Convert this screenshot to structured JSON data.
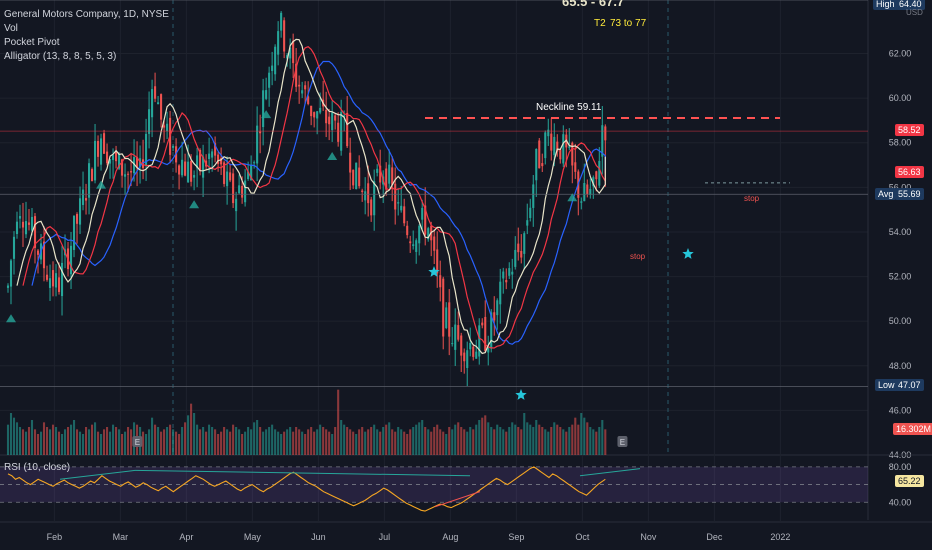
{
  "legend": {
    "title": "General Motors Company, 1D, NYSE",
    "vol": "Vol",
    "pocket_pivot": "Pocket Pivot",
    "alligator": "Alligator (13, 8, 8, 5, 5, 3)"
  },
  "header": {
    "price_fragment": "65.5 - 67.7",
    "t2_label": "T2",
    "t2_range": "73 to 77"
  },
  "annotations": {
    "neckline": "Neckline 59.11",
    "stop_upper": "stop",
    "stop_lower": "stop"
  },
  "price_tags": {
    "high_label": "High",
    "high_value": "64.40",
    "currency": "USD",
    "last": "58.52",
    "alligator": "56.63",
    "avg_label": "Avg",
    "avg_value": "55.69",
    "low_label": "Low",
    "low_value": "47.07",
    "volume": "16.302M",
    "rsi": "65.22"
  },
  "rsi": {
    "label": "RSI (10, close)",
    "levels": [
      "80.00",
      "40.00"
    ]
  },
  "colors": {
    "background": "#131722",
    "up": "#26a69a",
    "down": "#ef5350",
    "jaw": "#2962ff",
    "teeth": "#f23645",
    "lips": "#e8e4c9",
    "neckline": "#ff5252",
    "rsi_line": "#f5a623",
    "rsi_band": "#7e57c2"
  },
  "chart_data": {
    "type": "candlestick",
    "y_axis": {
      "ticks": [
        "62.00",
        "60.00",
        "58.00",
        "56.00",
        "54.00",
        "52.00",
        "50.00",
        "48.00",
        "46.00",
        "44.00"
      ],
      "ylim": [
        44,
        64.4
      ]
    },
    "x_axis": {
      "ticks": [
        "Feb",
        "Mar",
        "Apr",
        "May",
        "Jun",
        "Jul",
        "Aug",
        "Sep",
        "Oct",
        "Nov",
        "Dec",
        "2022"
      ]
    },
    "neckline_value": 59.11,
    "anchor_prices": [
      {
        "m": 0.0,
        "p": 51.5
      },
      {
        "m": 0.15,
        "p": 55.5
      },
      {
        "m": 0.35,
        "p": 54.0
      },
      {
        "m": 0.55,
        "p": 52.5
      },
      {
        "m": 0.75,
        "p": 51.5
      },
      {
        "m": 0.9,
        "p": 53.0
      },
      {
        "m": 1.1,
        "p": 55.0
      },
      {
        "m": 1.4,
        "p": 58.5
      },
      {
        "m": 1.6,
        "p": 57.0
      },
      {
        "m": 2.0,
        "p": 56.5
      },
      {
        "m": 2.2,
        "p": 61.0
      },
      {
        "m": 2.35,
        "p": 58.5
      },
      {
        "m": 2.55,
        "p": 57.5
      },
      {
        "m": 2.8,
        "p": 56.5
      },
      {
        "m": 3.1,
        "p": 57.5
      },
      {
        "m": 3.4,
        "p": 55.5
      },
      {
        "m": 3.65,
        "p": 56.5
      },
      {
        "m": 3.9,
        "p": 60.5
      },
      {
        "m": 4.1,
        "p": 63.5
      },
      {
        "m": 4.35,
        "p": 61.0
      },
      {
        "m": 4.6,
        "p": 59.5
      },
      {
        "m": 4.85,
        "p": 59.0
      },
      {
        "m": 5.1,
        "p": 58.5
      },
      {
        "m": 5.3,
        "p": 56.0
      },
      {
        "m": 5.5,
        "p": 55.5
      },
      {
        "m": 5.7,
        "p": 57.0
      },
      {
        "m": 5.9,
        "p": 55.0
      },
      {
        "m": 6.1,
        "p": 54.0
      },
      {
        "m": 6.35,
        "p": 54.5
      },
      {
        "m": 6.6,
        "p": 50.0
      },
      {
        "m": 6.85,
        "p": 49.0
      },
      {
        "m": 7.1,
        "p": 49.0
      },
      {
        "m": 7.3,
        "p": 49.5
      },
      {
        "m": 7.55,
        "p": 52.0
      },
      {
        "m": 7.8,
        "p": 53.5
      },
      {
        "m": 8.0,
        "p": 57.0
      },
      {
        "m": 8.2,
        "p": 58.5
      },
      {
        "m": 8.45,
        "p": 57.5
      },
      {
        "m": 8.7,
        "p": 55.5
      },
      {
        "m": 8.9,
        "p": 55.8
      },
      {
        "m": 9.0,
        "p": 58.8
      }
    ],
    "volume_series_million": [
      13,
      18,
      16,
      14,
      12,
      11,
      10,
      12,
      15,
      11,
      9,
      10,
      14,
      12,
      11,
      13,
      12,
      10,
      9,
      11,
      12,
      13,
      15,
      11,
      10,
      9,
      12,
      11,
      13,
      14,
      10,
      9,
      11,
      12,
      10,
      13,
      12,
      11,
      9,
      10,
      12,
      11,
      14,
      13,
      12,
      10,
      9,
      11,
      16,
      13,
      12,
      10,
      11,
      12,
      13,
      11,
      10,
      9,
      12,
      14,
      17,
      22,
      18,
      13,
      11,
      12,
      10,
      13,
      12,
      11,
      9,
      10,
      12,
      11,
      10,
      13,
      12,
      11,
      9,
      10,
      12,
      11,
      14,
      15,
      12,
      10,
      11,
      12,
      13,
      11,
      10,
      9,
      10,
      11,
      12,
      10,
      12,
      11,
      10,
      9,
      11,
      12,
      10,
      11,
      13,
      12,
      11,
      10,
      9,
      12,
      28,
      15,
      13,
      12,
      11,
      10,
      9,
      11,
      12,
      10,
      11,
      12,
      13,
      11,
      10,
      12,
      13,
      14,
      11,
      10,
      12,
      11,
      10,
      9,
      11,
      12,
      13,
      14,
      15,
      12,
      11,
      10,
      12,
      13,
      11,
      10,
      9,
      12,
      11,
      13,
      14,
      12,
      11,
      10,
      12,
      11,
      13,
      15,
      16,
      17,
      14,
      12,
      11,
      13,
      12,
      11,
      10,
      12,
      14,
      13,
      12,
      11,
      18,
      14,
      13,
      12,
      15,
      13,
      12,
      11,
      10,
      12,
      14,
      13,
      12,
      11,
      10,
      12,
      13,
      16
    ],
    "rsi_series": [
      72,
      70,
      66,
      68,
      65,
      62,
      60,
      63,
      66,
      64,
      62,
      60,
      58,
      61,
      63,
      65,
      62,
      60,
      58,
      56,
      58,
      61,
      64,
      62,
      66,
      70,
      67,
      64,
      62,
      60,
      58,
      61,
      63,
      60,
      57,
      59,
      62,
      60,
      57,
      55,
      53,
      56,
      58,
      55,
      52,
      55,
      58,
      61,
      64,
      67,
      70,
      68,
      66,
      63,
      60,
      58,
      60,
      62,
      64,
      61,
      58,
      55,
      53,
      56,
      58,
      60,
      57,
      54,
      52,
      55,
      57,
      60,
      63,
      66,
      69,
      72,
      74,
      71,
      68,
      65,
      62,
      60,
      58,
      55,
      52,
      50,
      48,
      46,
      44,
      42,
      40,
      38,
      36,
      38,
      40,
      42,
      45,
      48,
      50,
      53,
      56,
      54,
      51,
      48,
      45,
      42,
      39,
      37,
      35,
      33,
      31,
      30,
      32,
      34,
      36,
      38,
      37,
      35,
      34,
      36,
      38,
      40,
      43,
      46,
      49,
      52,
      55,
      58,
      61,
      64,
      67,
      65,
      62,
      60,
      63,
      66,
      69,
      72,
      75,
      78,
      80,
      77,
      74,
      71,
      68,
      72,
      70,
      67,
      64,
      61,
      58,
      55,
      52,
      50,
      48,
      52,
      56,
      60,
      63,
      66
    ]
  }
}
